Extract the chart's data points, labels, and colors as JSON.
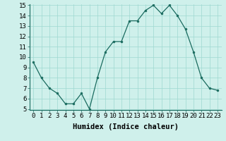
{
  "x": [
    0,
    1,
    2,
    3,
    4,
    5,
    6,
    7,
    8,
    9,
    10,
    11,
    12,
    13,
    14,
    15,
    16,
    17,
    18,
    19,
    20,
    21,
    22,
    23
  ],
  "y": [
    9.5,
    8.0,
    7.0,
    6.5,
    5.5,
    5.5,
    6.5,
    5.0,
    8.0,
    10.5,
    11.5,
    11.5,
    13.5,
    13.5,
    14.5,
    15.0,
    14.2,
    15.0,
    14.0,
    12.7,
    10.5,
    8.0,
    7.0,
    6.8
  ],
  "xlabel": "Humidex (Indice chaleur)",
  "ylim_min": 5,
  "ylim_max": 15,
  "xlim_min": -0.5,
  "xlim_max": 23.5,
  "yticks": [
    5,
    6,
    7,
    8,
    9,
    10,
    11,
    12,
    13,
    14,
    15
  ],
  "xticks": [
    0,
    1,
    2,
    3,
    4,
    5,
    6,
    7,
    8,
    9,
    10,
    11,
    12,
    13,
    14,
    15,
    16,
    17,
    18,
    19,
    20,
    21,
    22,
    23
  ],
  "line_color": "#1a6b5f",
  "marker_color": "#1a6b5f",
  "bg_color": "#cff0eb",
  "grid_color": "#9ed8d0",
  "xlabel_fontsize": 7.5,
  "tick_fontsize": 6.5
}
